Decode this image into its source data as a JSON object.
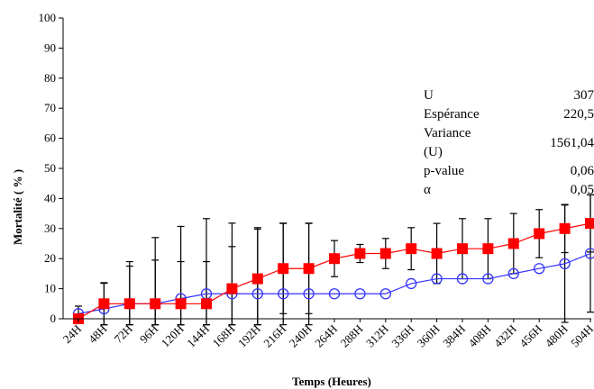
{
  "chart_data": {
    "type": "line",
    "xlabel": "Temps (Heures)",
    "ylabel": "Mortalité ( % )",
    "ylim": [
      0,
      100
    ],
    "yticks": [
      0,
      10,
      20,
      30,
      40,
      50,
      60,
      70,
      80,
      90,
      100
    ],
    "categories": [
      "24H",
      "48H",
      "72H",
      "96H",
      "120H",
      "144H",
      "168H",
      "192H",
      "216H",
      "240H",
      "264H",
      "288H",
      "312H",
      "336H",
      "360H",
      "384H",
      "408H",
      "432H",
      "456H",
      "480H",
      "504H"
    ],
    "grid": false,
    "series": [
      {
        "marker": "square",
        "color": "#ff0000",
        "values": [
          0,
          5,
          5,
          5,
          5,
          5,
          10,
          13.3,
          16.7,
          16.7,
          20,
          21.7,
          21.7,
          23.3,
          21.7,
          23.3,
          23.3,
          25,
          28.3,
          30,
          31.7
        ],
        "error": [
          0,
          7,
          14,
          14.5,
          14,
          14,
          14,
          17,
          15,
          15,
          6,
          3,
          5,
          7,
          10,
          10,
          10,
          10,
          8,
          8,
          9.5
        ]
      },
      {
        "marker": "circle",
        "color": "#3333ff",
        "values": [
          1.7,
          3.3,
          5,
          5,
          6.7,
          8.3,
          8.3,
          8.3,
          8.3,
          8.3,
          8.3,
          8.3,
          8.3,
          11.7,
          13.3,
          13.3,
          13.3,
          15,
          16.7,
          18.3,
          21.7
        ],
        "error": [
          2.5,
          8.5,
          12.5,
          22,
          24,
          25,
          23.5,
          21.5,
          23.5,
          23.5,
          0,
          0,
          0,
          0,
          0,
          0,
          0,
          0,
          0,
          19.5,
          19.5
        ]
      }
    ]
  },
  "stats": [
    {
      "label": "U",
      "value": "307"
    },
    {
      "label": "Espérance",
      "value": "220,5"
    },
    {
      "label": "Variance (U)",
      "value": "1561,04"
    },
    {
      "label": "p-value",
      "value": "0,06"
    },
    {
      "label": "α",
      "value": "0,05"
    }
  ]
}
